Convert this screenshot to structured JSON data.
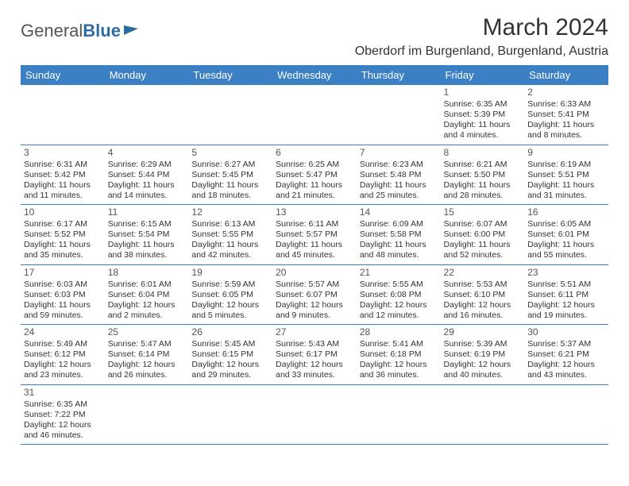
{
  "logo": {
    "text1": "General",
    "text2": "Blue"
  },
  "title": "March 2024",
  "subtitle": "Oberdorf im Burgenland, Burgenland, Austria",
  "colors": {
    "header_bg": "#3b7fc4",
    "header_text": "#ffffff",
    "border": "#3b7fc4",
    "text": "#333333",
    "logo_gray": "#555555",
    "logo_blue": "#2d6ca2",
    "page_bg": "#ffffff"
  },
  "weekdays": [
    "Sunday",
    "Monday",
    "Tuesday",
    "Wednesday",
    "Thursday",
    "Friday",
    "Saturday"
  ],
  "weeks": [
    [
      null,
      null,
      null,
      null,
      null,
      {
        "day": "1",
        "sunrise": "6:35 AM",
        "sunset": "5:39 PM",
        "daylight": "11 hours and 4 minutes."
      },
      {
        "day": "2",
        "sunrise": "6:33 AM",
        "sunset": "5:41 PM",
        "daylight": "11 hours and 8 minutes."
      }
    ],
    [
      {
        "day": "3",
        "sunrise": "6:31 AM",
        "sunset": "5:42 PM",
        "daylight": "11 hours and 11 minutes."
      },
      {
        "day": "4",
        "sunrise": "6:29 AM",
        "sunset": "5:44 PM",
        "daylight": "11 hours and 14 minutes."
      },
      {
        "day": "5",
        "sunrise": "6:27 AM",
        "sunset": "5:45 PM",
        "daylight": "11 hours and 18 minutes."
      },
      {
        "day": "6",
        "sunrise": "6:25 AM",
        "sunset": "5:47 PM",
        "daylight": "11 hours and 21 minutes."
      },
      {
        "day": "7",
        "sunrise": "6:23 AM",
        "sunset": "5:48 PM",
        "daylight": "11 hours and 25 minutes."
      },
      {
        "day": "8",
        "sunrise": "6:21 AM",
        "sunset": "5:50 PM",
        "daylight": "11 hours and 28 minutes."
      },
      {
        "day": "9",
        "sunrise": "6:19 AM",
        "sunset": "5:51 PM",
        "daylight": "11 hours and 31 minutes."
      }
    ],
    [
      {
        "day": "10",
        "sunrise": "6:17 AM",
        "sunset": "5:52 PM",
        "daylight": "11 hours and 35 minutes."
      },
      {
        "day": "11",
        "sunrise": "6:15 AM",
        "sunset": "5:54 PM",
        "daylight": "11 hours and 38 minutes."
      },
      {
        "day": "12",
        "sunrise": "6:13 AM",
        "sunset": "5:55 PM",
        "daylight": "11 hours and 42 minutes."
      },
      {
        "day": "13",
        "sunrise": "6:11 AM",
        "sunset": "5:57 PM",
        "daylight": "11 hours and 45 minutes."
      },
      {
        "day": "14",
        "sunrise": "6:09 AM",
        "sunset": "5:58 PM",
        "daylight": "11 hours and 48 minutes."
      },
      {
        "day": "15",
        "sunrise": "6:07 AM",
        "sunset": "6:00 PM",
        "daylight": "11 hours and 52 minutes."
      },
      {
        "day": "16",
        "sunrise": "6:05 AM",
        "sunset": "6:01 PM",
        "daylight": "11 hours and 55 minutes."
      }
    ],
    [
      {
        "day": "17",
        "sunrise": "6:03 AM",
        "sunset": "6:03 PM",
        "daylight": "11 hours and 59 minutes."
      },
      {
        "day": "18",
        "sunrise": "6:01 AM",
        "sunset": "6:04 PM",
        "daylight": "12 hours and 2 minutes."
      },
      {
        "day": "19",
        "sunrise": "5:59 AM",
        "sunset": "6:05 PM",
        "daylight": "12 hours and 5 minutes."
      },
      {
        "day": "20",
        "sunrise": "5:57 AM",
        "sunset": "6:07 PM",
        "daylight": "12 hours and 9 minutes."
      },
      {
        "day": "21",
        "sunrise": "5:55 AM",
        "sunset": "6:08 PM",
        "daylight": "12 hours and 12 minutes."
      },
      {
        "day": "22",
        "sunrise": "5:53 AM",
        "sunset": "6:10 PM",
        "daylight": "12 hours and 16 minutes."
      },
      {
        "day": "23",
        "sunrise": "5:51 AM",
        "sunset": "6:11 PM",
        "daylight": "12 hours and 19 minutes."
      }
    ],
    [
      {
        "day": "24",
        "sunrise": "5:49 AM",
        "sunset": "6:12 PM",
        "daylight": "12 hours and 23 minutes."
      },
      {
        "day": "25",
        "sunrise": "5:47 AM",
        "sunset": "6:14 PM",
        "daylight": "12 hours and 26 minutes."
      },
      {
        "day": "26",
        "sunrise": "5:45 AM",
        "sunset": "6:15 PM",
        "daylight": "12 hours and 29 minutes."
      },
      {
        "day": "27",
        "sunrise": "5:43 AM",
        "sunset": "6:17 PM",
        "daylight": "12 hours and 33 minutes."
      },
      {
        "day": "28",
        "sunrise": "5:41 AM",
        "sunset": "6:18 PM",
        "daylight": "12 hours and 36 minutes."
      },
      {
        "day": "29",
        "sunrise": "5:39 AM",
        "sunset": "6:19 PM",
        "daylight": "12 hours and 40 minutes."
      },
      {
        "day": "30",
        "sunrise": "5:37 AM",
        "sunset": "6:21 PM",
        "daylight": "12 hours and 43 minutes."
      }
    ],
    [
      {
        "day": "31",
        "sunrise": "6:35 AM",
        "sunset": "7:22 PM",
        "daylight": "12 hours and 46 minutes."
      },
      null,
      null,
      null,
      null,
      null,
      null
    ]
  ],
  "labels": {
    "sunrise": "Sunrise:",
    "sunset": "Sunset:",
    "daylight": "Daylight:"
  }
}
